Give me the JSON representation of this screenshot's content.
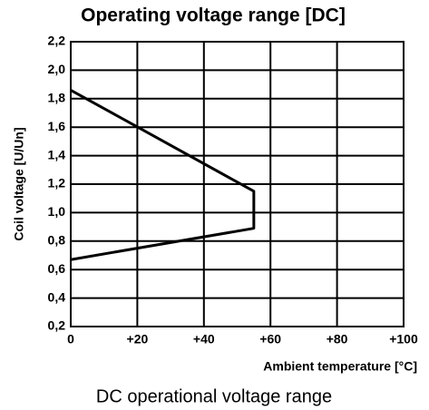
{
  "chart_data": {
    "type": "line",
    "title": "Operating voltage range [DC]",
    "ylabel": "Coil voltage [U/Un]",
    "xlabel": "Ambient temperature [°C]",
    "caption": "DC operational voltage range",
    "series": [
      {
        "x": [
          0,
          55,
          55,
          0
        ],
        "values": [
          1.86,
          1.15,
          0.89,
          0.67
        ],
        "color": "#000000"
      }
    ],
    "xlim": [
      0,
      100
    ],
    "xticks": [
      0,
      {
        "value": 20,
        "label": "+20"
      },
      {
        "value": 40,
        "label": "+40"
      },
      {
        "value": 60,
        "label": "+60"
      },
      {
        "value": 80,
        "label": "+80"
      },
      {
        "value": 100,
        "label": "+100"
      }
    ],
    "ylim": [
      0.2,
      2.2
    ],
    "yticks": [
      {
        "value": 0.2,
        "label": "0,2"
      },
      {
        "value": 0.4,
        "label": "0,4"
      },
      {
        "value": 0.6,
        "label": "0,6"
      },
      {
        "value": 0.8,
        "label": "0,8"
      },
      {
        "value": 1.0,
        "label": "1,0"
      },
      {
        "value": 1.2,
        "label": "1,2"
      },
      {
        "value": 1.4,
        "label": "1,4"
      },
      {
        "value": 1.6,
        "label": "1,6"
      },
      {
        "value": 1.8,
        "label": "1,8"
      },
      {
        "value": 2.0,
        "label": "2,0"
      },
      {
        "value": 2.2,
        "label": "2,2"
      }
    ],
    "grid": true
  }
}
